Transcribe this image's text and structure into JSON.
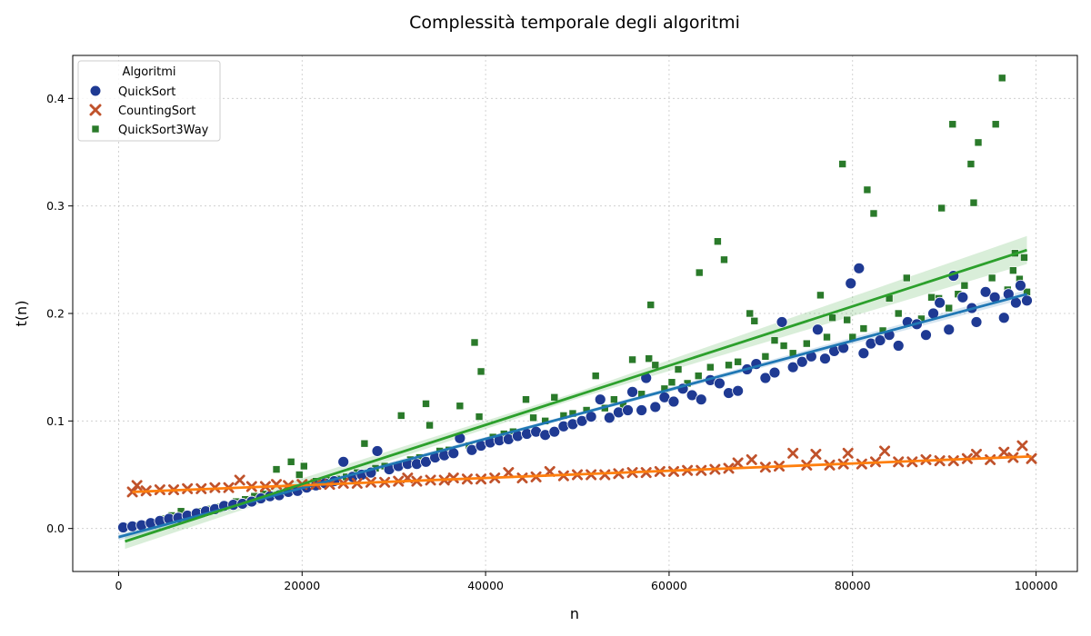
{
  "chart_data": {
    "type": "scatter",
    "title": "Complessità temporale degli algoritmi",
    "xlabel": "n",
    "ylabel": "t(n)",
    "xlim": [
      -5000,
      104500
    ],
    "ylim": [
      -0.04,
      0.44
    ],
    "xticks": [
      0,
      20000,
      40000,
      60000,
      80000,
      100000
    ],
    "xtick_labels": [
      "0",
      "20000",
      "40000",
      "60000",
      "80000",
      "100000"
    ],
    "yticks": [
      0.0,
      0.1,
      0.2,
      0.3,
      0.4
    ],
    "ytick_labels": [
      "0.0",
      "0.1",
      "0.2",
      "0.3",
      "0.4"
    ],
    "grid": true,
    "legend": {
      "title": "Algoritmi",
      "placement": "top-left",
      "entries": [
        "QuickSort",
        "CountingSort",
        "QuickSort3Way"
      ]
    },
    "series": [
      {
        "name": "QuickSort",
        "marker": "circle",
        "color": "#1f3a93",
        "fit_color": "#1f77b4",
        "fit": {
          "x": [
            0,
            99000
          ],
          "y": [
            -0.008,
            0.218
          ]
        },
        "points": [
          [
            500,
            0.001
          ],
          [
            1500,
            0.002
          ],
          [
            2500,
            0.003
          ],
          [
            3500,
            0.005
          ],
          [
            4500,
            0.007
          ],
          [
            5500,
            0.009
          ],
          [
            6500,
            0.01
          ],
          [
            7500,
            0.012
          ],
          [
            8500,
            0.014
          ],
          [
            9500,
            0.016
          ],
          [
            10500,
            0.018
          ],
          [
            11500,
            0.021
          ],
          [
            12500,
            0.022
          ],
          [
            13500,
            0.023
          ],
          [
            14500,
            0.025
          ],
          [
            15500,
            0.028
          ],
          [
            16500,
            0.03
          ],
          [
            17500,
            0.031
          ],
          [
            18500,
            0.034
          ],
          [
            19500,
            0.035
          ],
          [
            20500,
            0.038
          ],
          [
            21500,
            0.04
          ],
          [
            22500,
            0.042
          ],
          [
            23500,
            0.044
          ],
          [
            24500,
            0.062
          ],
          [
            25500,
            0.048
          ],
          [
            26500,
            0.05
          ],
          [
            27500,
            0.052
          ],
          [
            28200,
            0.072
          ],
          [
            29500,
            0.055
          ],
          [
            30500,
            0.058
          ],
          [
            31500,
            0.06
          ],
          [
            32500,
            0.06
          ],
          [
            33500,
            0.062
          ],
          [
            34500,
            0.066
          ],
          [
            35500,
            0.068
          ],
          [
            36500,
            0.07
          ],
          [
            37200,
            0.084
          ],
          [
            38500,
            0.073
          ],
          [
            39500,
            0.077
          ],
          [
            40500,
            0.08
          ],
          [
            41500,
            0.082
          ],
          [
            42500,
            0.083
          ],
          [
            43500,
            0.086
          ],
          [
            44500,
            0.088
          ],
          [
            45500,
            0.09
          ],
          [
            46500,
            0.087
          ],
          [
            47500,
            0.09
          ],
          [
            48500,
            0.095
          ],
          [
            49500,
            0.097
          ],
          [
            50500,
            0.1
          ],
          [
            51500,
            0.104
          ],
          [
            52500,
            0.12
          ],
          [
            53500,
            0.103
          ],
          [
            54500,
            0.108
          ],
          [
            55500,
            0.11
          ],
          [
            56000,
            0.127
          ],
          [
            57000,
            0.11
          ],
          [
            57500,
            0.14
          ],
          [
            58500,
            0.113
          ],
          [
            59500,
            0.122
          ],
          [
            60500,
            0.118
          ],
          [
            61500,
            0.13
          ],
          [
            62500,
            0.124
          ],
          [
            63500,
            0.12
          ],
          [
            64500,
            0.138
          ],
          [
            65500,
            0.135
          ],
          [
            66500,
            0.126
          ],
          [
            67500,
            0.128
          ],
          [
            68500,
            0.148
          ],
          [
            69500,
            0.153
          ],
          [
            70500,
            0.14
          ],
          [
            71500,
            0.145
          ],
          [
            72300,
            0.192
          ],
          [
            73500,
            0.15
          ],
          [
            74500,
            0.155
          ],
          [
            75500,
            0.16
          ],
          [
            76200,
            0.185
          ],
          [
            77000,
            0.158
          ],
          [
            78000,
            0.165
          ],
          [
            79000,
            0.168
          ],
          [
            79800,
            0.228
          ],
          [
            80700,
            0.242
          ],
          [
            81200,
            0.163
          ],
          [
            82000,
            0.172
          ],
          [
            83000,
            0.175
          ],
          [
            84000,
            0.18
          ],
          [
            85000,
            0.17
          ],
          [
            86000,
            0.192
          ],
          [
            87000,
            0.19
          ],
          [
            88000,
            0.18
          ],
          [
            88800,
            0.2
          ],
          [
            89500,
            0.21
          ],
          [
            90500,
            0.185
          ],
          [
            91000,
            0.235
          ],
          [
            92000,
            0.215
          ],
          [
            93000,
            0.205
          ],
          [
            93500,
            0.192
          ],
          [
            94500,
            0.22
          ],
          [
            95500,
            0.215
          ],
          [
            96500,
            0.196
          ],
          [
            97000,
            0.218
          ],
          [
            97800,
            0.21
          ],
          [
            98300,
            0.226
          ],
          [
            99000,
            0.212
          ]
        ]
      },
      {
        "name": "CountingSort",
        "marker": "x",
        "color": "#c0522b",
        "fit_color": "#ff7f0e",
        "fit": {
          "x": [
            1500,
            99500
          ],
          "y": [
            0.034,
            0.067
          ]
        },
        "points": [
          [
            1500,
            0.034
          ],
          [
            2000,
            0.04
          ],
          [
            3000,
            0.035
          ],
          [
            4500,
            0.036
          ],
          [
            6000,
            0.036
          ],
          [
            7500,
            0.037
          ],
          [
            9000,
            0.037
          ],
          [
            10500,
            0.038
          ],
          [
            12000,
            0.038
          ],
          [
            13200,
            0.045
          ],
          [
            14500,
            0.039
          ],
          [
            16000,
            0.039
          ],
          [
            17200,
            0.041
          ],
          [
            18500,
            0.04
          ],
          [
            20000,
            0.041
          ],
          [
            21500,
            0.041
          ],
          [
            23000,
            0.041
          ],
          [
            24500,
            0.042
          ],
          [
            26000,
            0.042
          ],
          [
            27500,
            0.043
          ],
          [
            29000,
            0.043
          ],
          [
            30500,
            0.044
          ],
          [
            31500,
            0.047
          ],
          [
            32500,
            0.044
          ],
          [
            34000,
            0.045
          ],
          [
            35500,
            0.045
          ],
          [
            36500,
            0.047
          ],
          [
            38000,
            0.046
          ],
          [
            39500,
            0.046
          ],
          [
            41000,
            0.047
          ],
          [
            42500,
            0.052
          ],
          [
            44000,
            0.047
          ],
          [
            45500,
            0.048
          ],
          [
            47000,
            0.053
          ],
          [
            48500,
            0.049
          ],
          [
            50000,
            0.05
          ],
          [
            51500,
            0.05
          ],
          [
            53000,
            0.05
          ],
          [
            54500,
            0.051
          ],
          [
            56000,
            0.052
          ],
          [
            57500,
            0.052
          ],
          [
            59000,
            0.053
          ],
          [
            60500,
            0.053
          ],
          [
            62000,
            0.054
          ],
          [
            63500,
            0.054
          ],
          [
            65000,
            0.055
          ],
          [
            66500,
            0.056
          ],
          [
            67500,
            0.061
          ],
          [
            69000,
            0.064
          ],
          [
            70500,
            0.057
          ],
          [
            72000,
            0.058
          ],
          [
            73500,
            0.07
          ],
          [
            75000,
            0.059
          ],
          [
            76000,
            0.069
          ],
          [
            77500,
            0.059
          ],
          [
            79000,
            0.06
          ],
          [
            79500,
            0.07
          ],
          [
            81000,
            0.06
          ],
          [
            82500,
            0.062
          ],
          [
            83500,
            0.072
          ],
          [
            85000,
            0.062
          ],
          [
            86500,
            0.062
          ],
          [
            88000,
            0.064
          ],
          [
            89500,
            0.063
          ],
          [
            91000,
            0.063
          ],
          [
            92500,
            0.065
          ],
          [
            93500,
            0.069
          ],
          [
            95000,
            0.064
          ],
          [
            96500,
            0.071
          ],
          [
            97500,
            0.066
          ],
          [
            98500,
            0.077
          ],
          [
            99500,
            0.065
          ]
        ]
      },
      {
        "name": "QuickSort3Way",
        "marker": "square",
        "color": "#2a7a2a",
        "fit_color": "#2ca02c",
        "fit": {
          "x": [
            700,
            99000
          ],
          "y": [
            -0.012,
            0.259
          ]
        },
        "points": [
          [
            700,
            0.002
          ],
          [
            1700,
            0.003
          ],
          [
            2800,
            0.004
          ],
          [
            3800,
            0.006
          ],
          [
            4800,
            0.009
          ],
          [
            5800,
            0.012
          ],
          [
            6800,
            0.016
          ],
          [
            7800,
            0.012
          ],
          [
            8800,
            0.016
          ],
          [
            9800,
            0.018
          ],
          [
            10800,
            0.02
          ],
          [
            11800,
            0.022
          ],
          [
            12800,
            0.025
          ],
          [
            13800,
            0.027
          ],
          [
            14800,
            0.03
          ],
          [
            15800,
            0.032
          ],
          [
            17200,
            0.055
          ],
          [
            18800,
            0.062
          ],
          [
            19700,
            0.05
          ],
          [
            20200,
            0.058
          ],
          [
            21500,
            0.044
          ],
          [
            22800,
            0.045
          ],
          [
            23800,
            0.046
          ],
          [
            24800,
            0.048
          ],
          [
            26000,
            0.052
          ],
          [
            26800,
            0.079
          ],
          [
            28000,
            0.056
          ],
          [
            29000,
            0.058
          ],
          [
            30800,
            0.105
          ],
          [
            31800,
            0.064
          ],
          [
            32800,
            0.066
          ],
          [
            33500,
            0.116
          ],
          [
            33900,
            0.096
          ],
          [
            35000,
            0.072
          ],
          [
            36000,
            0.073
          ],
          [
            37200,
            0.114
          ],
          [
            38200,
            0.077
          ],
          [
            38800,
            0.173
          ],
          [
            39300,
            0.104
          ],
          [
            39500,
            0.146
          ],
          [
            40800,
            0.085
          ],
          [
            42000,
            0.088
          ],
          [
            43000,
            0.09
          ],
          [
            44400,
            0.12
          ],
          [
            45200,
            0.103
          ],
          [
            46500,
            0.1
          ],
          [
            47500,
            0.122
          ],
          [
            48500,
            0.105
          ],
          [
            49500,
            0.107
          ],
          [
            51000,
            0.11
          ],
          [
            52000,
            0.142
          ],
          [
            53000,
            0.112
          ],
          [
            54000,
            0.12
          ],
          [
            55000,
            0.115
          ],
          [
            56000,
            0.157
          ],
          [
            57000,
            0.125
          ],
          [
            57800,
            0.158
          ],
          [
            58000,
            0.208
          ],
          [
            58500,
            0.152
          ],
          [
            59500,
            0.13
          ],
          [
            60300,
            0.136
          ],
          [
            61000,
            0.148
          ],
          [
            62000,
            0.135
          ],
          [
            63200,
            0.142
          ],
          [
            63300,
            0.238
          ],
          [
            64500,
            0.15
          ],
          [
            65300,
            0.267
          ],
          [
            66000,
            0.25
          ],
          [
            66500,
            0.152
          ],
          [
            67500,
            0.155
          ],
          [
            68800,
            0.2
          ],
          [
            69300,
            0.193
          ],
          [
            70500,
            0.16
          ],
          [
            71500,
            0.175
          ],
          [
            72500,
            0.17
          ],
          [
            73500,
            0.163
          ],
          [
            75000,
            0.172
          ],
          [
            76500,
            0.217
          ],
          [
            77200,
            0.178
          ],
          [
            77800,
            0.196
          ],
          [
            78900,
            0.339
          ],
          [
            79400,
            0.194
          ],
          [
            80000,
            0.178
          ],
          [
            81200,
            0.186
          ],
          [
            81600,
            0.315
          ],
          [
            82300,
            0.293
          ],
          [
            83300,
            0.184
          ],
          [
            84000,
            0.214
          ],
          [
            85000,
            0.2
          ],
          [
            85900,
            0.233
          ],
          [
            87500,
            0.195
          ],
          [
            88600,
            0.215
          ],
          [
            89400,
            0.214
          ],
          [
            89700,
            0.298
          ],
          [
            90500,
            0.205
          ],
          [
            90900,
            0.376
          ],
          [
            91500,
            0.218
          ],
          [
            92200,
            0.226
          ],
          [
            92900,
            0.339
          ],
          [
            93200,
            0.303
          ],
          [
            93700,
            0.359
          ],
          [
            94500,
            0.22
          ],
          [
            95200,
            0.233
          ],
          [
            95600,
            0.376
          ],
          [
            96300,
            0.419
          ],
          [
            96900,
            0.222
          ],
          [
            97500,
            0.24
          ],
          [
            97700,
            0.256
          ],
          [
            98200,
            0.232
          ],
          [
            98700,
            0.252
          ],
          [
            99000,
            0.22
          ]
        ]
      }
    ]
  }
}
